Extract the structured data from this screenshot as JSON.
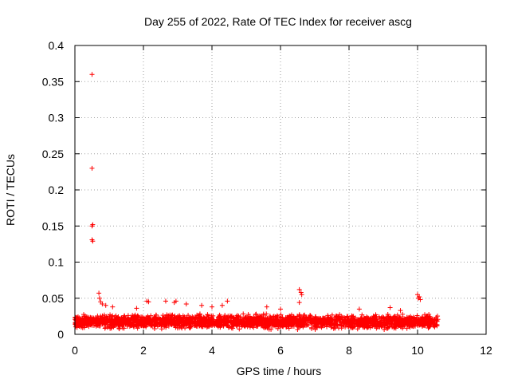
{
  "chart_data": {
    "type": "scatter",
    "title": "Day 255 of 2022, Rate Of TEC Index for receiver ascg",
    "xlabel": "GPS time / hours",
    "ylabel": "ROTI / TECUs",
    "xlim": [
      0,
      12
    ],
    "ylim": [
      0,
      0.4
    ],
    "x_ticks": [
      0,
      2,
      4,
      6,
      8,
      10,
      12
    ],
    "y_ticks": [
      0,
      0.05,
      0.1,
      0.15,
      0.2,
      0.25,
      0.3,
      0.35,
      0.4
    ],
    "x_tick_labels": [
      "0",
      "2",
      "4",
      "6",
      "8",
      "10",
      "12"
    ],
    "y_tick_labels": [
      "0",
      "0.05",
      "0.1",
      "0.15",
      "0.2",
      "0.25",
      "0.3",
      "0.35",
      "0.4"
    ],
    "grid": true,
    "marker": "+",
    "marker_color": "#ff0000",
    "series": [
      {
        "points": [
          [
            0.5,
            0.36
          ],
          [
            0.5,
            0.23
          ],
          [
            0.52,
            0.152
          ],
          [
            0.5,
            0.15
          ],
          [
            0.5,
            0.131
          ],
          [
            0.52,
            0.129
          ],
          [
            0.7,
            0.057
          ],
          [
            0.72,
            0.05
          ],
          [
            0.75,
            0.045
          ],
          [
            0.8,
            0.042
          ],
          [
            0.9,
            0.04
          ],
          [
            2.1,
            0.046
          ],
          [
            2.15,
            0.045
          ],
          [
            2.65,
            0.046
          ],
          [
            2.9,
            0.044
          ],
          [
            2.95,
            0.046
          ],
          [
            3.25,
            0.042
          ],
          [
            4.45,
            0.046
          ],
          [
            6.55,
            0.062
          ],
          [
            6.6,
            0.058
          ],
          [
            6.62,
            0.055
          ],
          [
            6.55,
            0.044
          ],
          [
            10.0,
            0.055
          ],
          [
            10.05,
            0.052
          ],
          [
            10.02,
            0.05
          ],
          [
            10.08,
            0.048
          ],
          [
            4.0,
            0.038
          ],
          [
            4.3,
            0.04
          ],
          [
            5.6,
            0.038
          ],
          [
            6.0,
            0.035
          ],
          [
            8.3,
            0.035
          ],
          [
            9.2,
            0.037
          ],
          [
            9.5,
            0.033
          ],
          [
            1.1,
            0.038
          ],
          [
            1.8,
            0.036
          ],
          [
            3.7,
            0.04
          ]
        ]
      }
    ],
    "dense_band": {
      "x_range": [
        0,
        10.6
      ],
      "y_range": [
        0.005,
        0.03
      ],
      "count": 2600
    }
  }
}
